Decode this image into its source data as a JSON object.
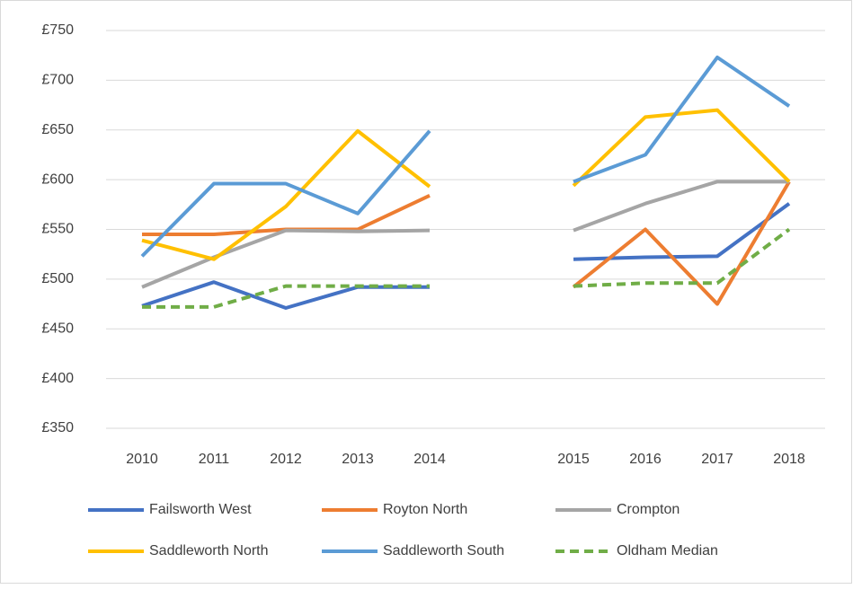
{
  "chart_data": {
    "type": "line",
    "categories": [
      "2010",
      "2011",
      "2012",
      "2013",
      "2014",
      null,
      "2015",
      "2016",
      "2017",
      "2018"
    ],
    "series": [
      {
        "name": "Failsworth West",
        "color": "#4472c4",
        "values": [
          473,
          497,
          471,
          492,
          492,
          null,
          520,
          522,
          523,
          576
        ]
      },
      {
        "name": "Royton North",
        "color": "#ed7d31",
        "values": [
          545,
          545,
          550,
          550,
          584,
          null,
          492,
          550,
          475,
          598
        ]
      },
      {
        "name": "Crompton",
        "color": "#a5a5a5",
        "values": [
          492,
          522,
          549,
          548,
          549,
          null,
          549,
          576,
          598,
          598
        ]
      },
      {
        "name": "Saddleworth North",
        "color": "#ffc000",
        "values": [
          539,
          520,
          573,
          649,
          593,
          null,
          594,
          663,
          670,
          598
        ]
      },
      {
        "name": "Saddleworth South",
        "color": "#5b9bd5",
        "values": [
          523,
          596,
          596,
          566,
          649,
          null,
          598,
          625,
          723,
          674
        ]
      },
      {
        "name": "Oldham Median",
        "color": "#70ad47",
        "line_style": "dashed",
        "values": [
          472,
          472,
          493,
          493,
          493,
          null,
          493,
          496,
          496,
          550
        ]
      }
    ],
    "ylim": [
      350,
      750
    ],
    "yticks": [
      {
        "value": 350,
        "label": "£350"
      },
      {
        "value": 400,
        "label": "£400"
      },
      {
        "value": 450,
        "label": "£450"
      },
      {
        "value": 500,
        "label": "£500"
      },
      {
        "value": 550,
        "label": "£550"
      },
      {
        "value": 600,
        "label": "£600"
      },
      {
        "value": 650,
        "label": "£650"
      },
      {
        "value": 700,
        "label": "£700"
      },
      {
        "value": 750,
        "label": "£750"
      }
    ],
    "grid": true,
    "legend": "bottom"
  }
}
